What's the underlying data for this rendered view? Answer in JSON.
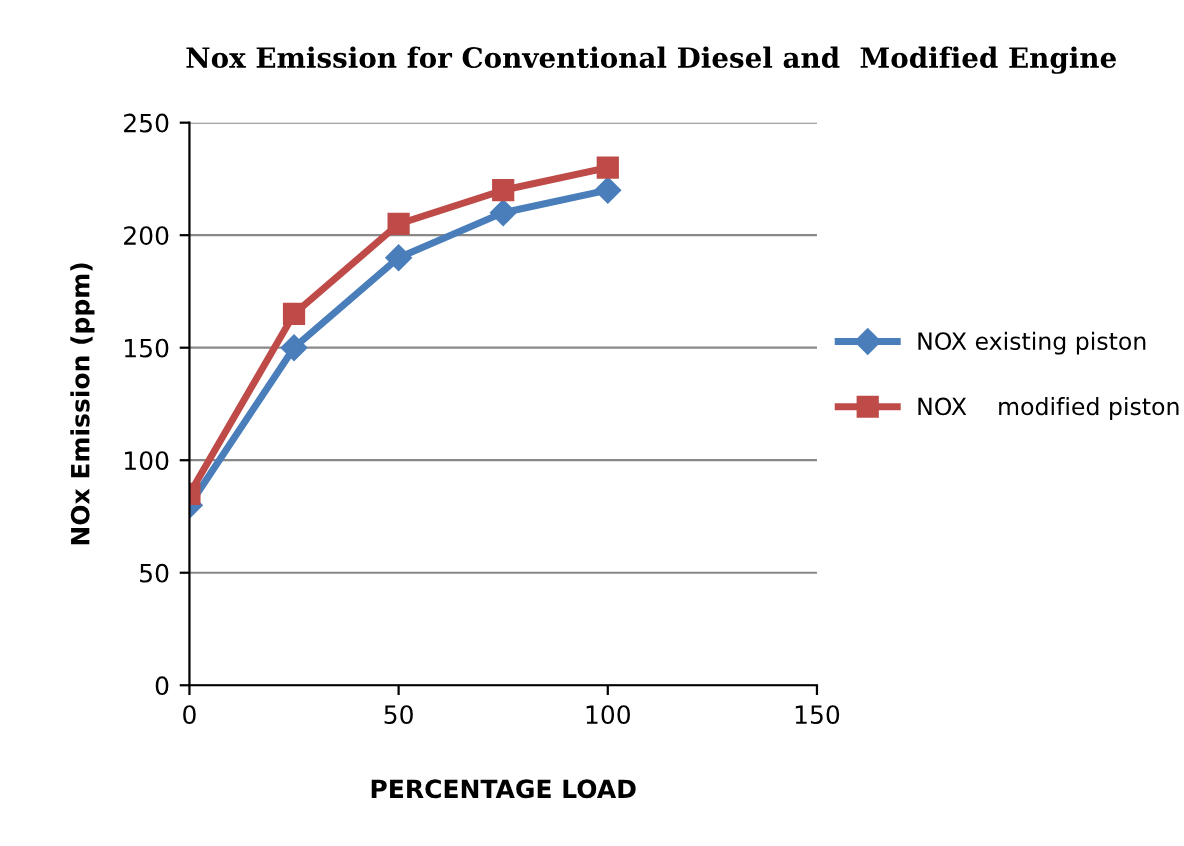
{
  "chart_data": {
    "type": "line",
    "title": "Nox Emission for Conventional Diesel and  Modified Engine",
    "xlabel": "PERCENTAGE LOAD",
    "ylabel": "NOx Emission (ppm)",
    "x": [
      0,
      25,
      50,
      75,
      100
    ],
    "series": [
      {
        "name": "NOX existing piston",
        "color": "#4a7ebb",
        "values": [
          80,
          150,
          190,
          210,
          220
        ],
        "marker": "diamond"
      },
      {
        "name": "NOX    modified piston",
        "color": "#be4b48",
        "values": [
          85,
          165,
          205,
          220,
          230
        ],
        "marker": "square"
      }
    ],
    "xlim": [
      0,
      150
    ],
    "xticks": [
      0,
      50,
      100,
      150
    ],
    "ylim": [
      0,
      250
    ],
    "yticks": [
      0,
      50,
      100,
      150,
      200,
      250
    ],
    "grid": "y",
    "legend": "right",
    "line_style": "solid"
  }
}
